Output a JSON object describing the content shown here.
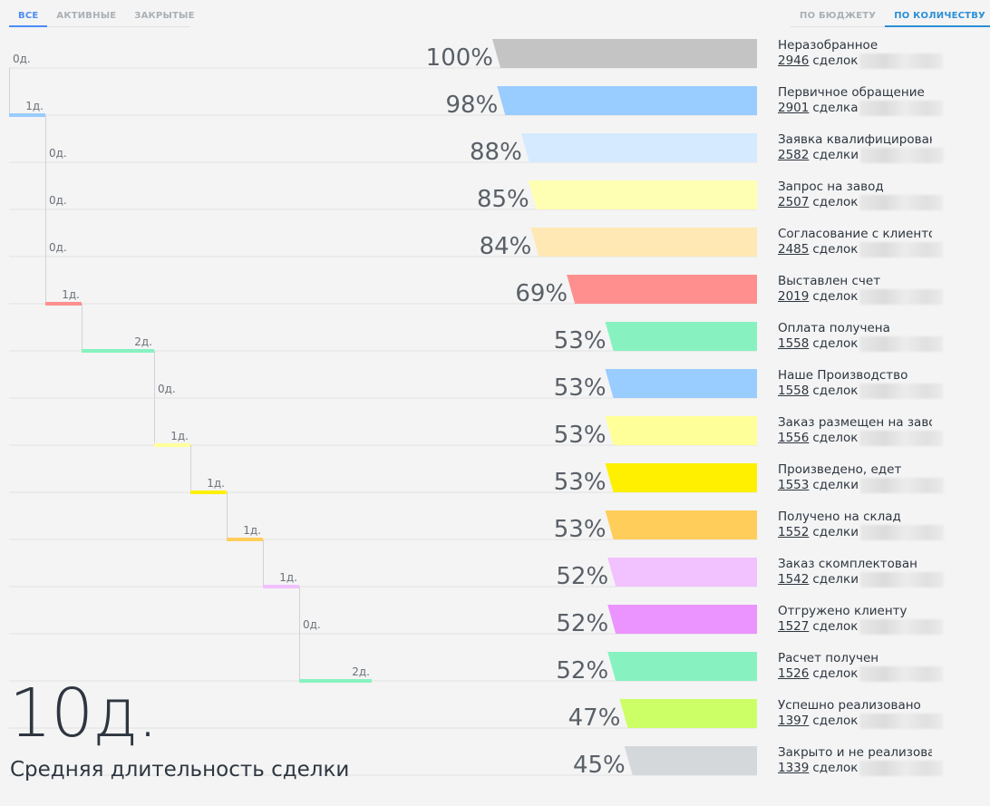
{
  "filter_tabs": [
    {
      "label": "ВСЕ",
      "active": true
    },
    {
      "label": "АКТИВНЫЕ",
      "active": false
    },
    {
      "label": "ЗАКРЫТЫЕ",
      "active": false
    }
  ],
  "sort_tabs": [
    {
      "label": "ПО БЮДЖЕТУ",
      "active": false
    },
    {
      "label": "ПО КОЛИЧЕСТВУ",
      "active": true
    }
  ],
  "stages": [
    {
      "name": "Неразобранное",
      "count": "2946",
      "unit": "сделок",
      "percent": "100%",
      "percent_value": 100,
      "days": "0д.",
      "days_value": 0,
      "color": "#c4c4c4"
    },
    {
      "name": "Первичное обращение",
      "count": "2901",
      "unit": "сделка",
      "percent": "98%",
      "percent_value": 98,
      "days": "1д.",
      "days_value": 1,
      "color": "#99ccff"
    },
    {
      "name": "Заявка квалифицирована",
      "count": "2582",
      "unit": "сделки",
      "percent": "88%",
      "percent_value": 88,
      "days": "0д.",
      "days_value": 0,
      "color": "#d6eaff"
    },
    {
      "name": "Запрос на завод",
      "count": "2507",
      "unit": "сделок",
      "percent": "85%",
      "percent_value": 85,
      "days": "0д.",
      "days_value": 0,
      "color": "#ffffb3"
    },
    {
      "name": "Согласование с клиентом",
      "count": "2485",
      "unit": "сделок",
      "percent": "84%",
      "percent_value": 84,
      "days": "0д.",
      "days_value": 0,
      "color": "#ffe8b3"
    },
    {
      "name": "Выставлен счет",
      "count": "2019",
      "unit": "сделок",
      "percent": "69%",
      "percent_value": 69,
      "days": "1д.",
      "days_value": 1,
      "color": "#ff8f8f"
    },
    {
      "name": "Оплата получена",
      "count": "1558",
      "unit": "сделок",
      "percent": "53%",
      "percent_value": 53,
      "days": "2д.",
      "days_value": 2,
      "color": "#87f2c0"
    },
    {
      "name": "Наше Производство",
      "count": "1558",
      "unit": "сделок",
      "percent": "53%",
      "percent_value": 53,
      "days": "0д.",
      "days_value": 0,
      "color": "#99ccff"
    },
    {
      "name": "Заказ размещен на заводе",
      "count": "1556",
      "unit": "сделок",
      "percent": "53%",
      "percent_value": 53,
      "days": "1д.",
      "days_value": 1,
      "color": "#ffff99"
    },
    {
      "name": "Произведено, едет",
      "count": "1553",
      "unit": "сделки",
      "percent": "53%",
      "percent_value": 53,
      "days": "1д.",
      "days_value": 1,
      "color": "#fff000"
    },
    {
      "name": "Получено на склад",
      "count": "1552",
      "unit": "сделки",
      "percent": "53%",
      "percent_value": 53,
      "days": "1д.",
      "days_value": 1,
      "color": "#ffce5a"
    },
    {
      "name": "Заказ скомплектован",
      "count": "1542",
      "unit": "сделки",
      "percent": "52%",
      "percent_value": 52,
      "days": "1д.",
      "days_value": 1,
      "color": "#f2c1ff"
    },
    {
      "name": "Отгружено клиенту",
      "count": "1527",
      "unit": "сделок",
      "percent": "52%",
      "percent_value": 52,
      "days": "0д.",
      "days_value": 0,
      "color": "#eb93ff"
    },
    {
      "name": "Расчет получен",
      "count": "1526",
      "unit": "сделок",
      "percent": "52%",
      "percent_value": 52,
      "days": "2д.",
      "days_value": 2,
      "color": "#87f2c0"
    },
    {
      "name": "Успешно реализовано",
      "count": "1397",
      "unit": "сделок",
      "percent": "47%",
      "percent_value": 47,
      "days": "",
      "days_value": null,
      "color": "#ccff66"
    },
    {
      "name": "Закрыто и не реализовано",
      "count": "1339",
      "unit": "сделок",
      "percent": "45%",
      "percent_value": 45,
      "days": "",
      "days_value": null,
      "color": "#d5d8db"
    }
  ],
  "summary": {
    "avg_days": "10д.",
    "avg_label": "Средняя длительность сделки"
  }
}
